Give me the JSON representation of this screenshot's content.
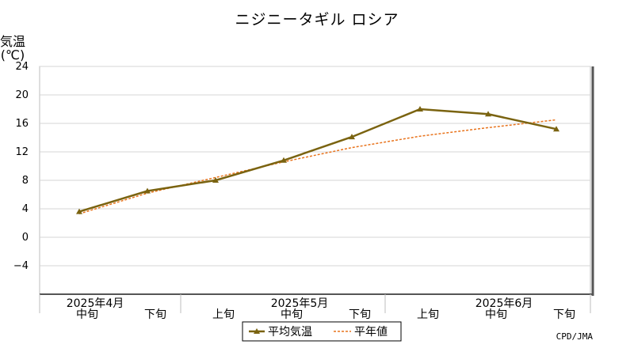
{
  "chart_data": {
    "type": "line",
    "title": "ニジニータギル ロシア",
    "ylabel_line1": "気温",
    "ylabel_line2": "(℃)",
    "ylim": [
      -8,
      24
    ],
    "yticks": [
      -4,
      0,
      4,
      8,
      12,
      16,
      20,
      24
    ],
    "grid": true,
    "legend_position": "bottom-center",
    "categories": [
      "中旬",
      "下旬",
      "上旬",
      "中旬",
      "下旬",
      "上旬",
      "中旬",
      "下旬"
    ],
    "month_labels": [
      {
        "label": "2025年4月",
        "at_index": 0
      },
      {
        "label": "2025年5月",
        "at_index": 3
      },
      {
        "label": "2025年6月",
        "at_index": 6
      }
    ],
    "series": [
      {
        "name": "平均気温",
        "style": "solid-triangle",
        "color": "#7a6310",
        "values": [
          3.6,
          6.5,
          8.0,
          10.8,
          14.1,
          18.0,
          17.3,
          15.2
        ]
      },
      {
        "name": "平年値",
        "style": "dashed",
        "color": "#e8731c",
        "values": [
          3.3,
          6.2,
          8.4,
          10.6,
          12.6,
          14.2,
          15.4,
          16.5
        ]
      }
    ],
    "credit": "CPD/JMA"
  }
}
